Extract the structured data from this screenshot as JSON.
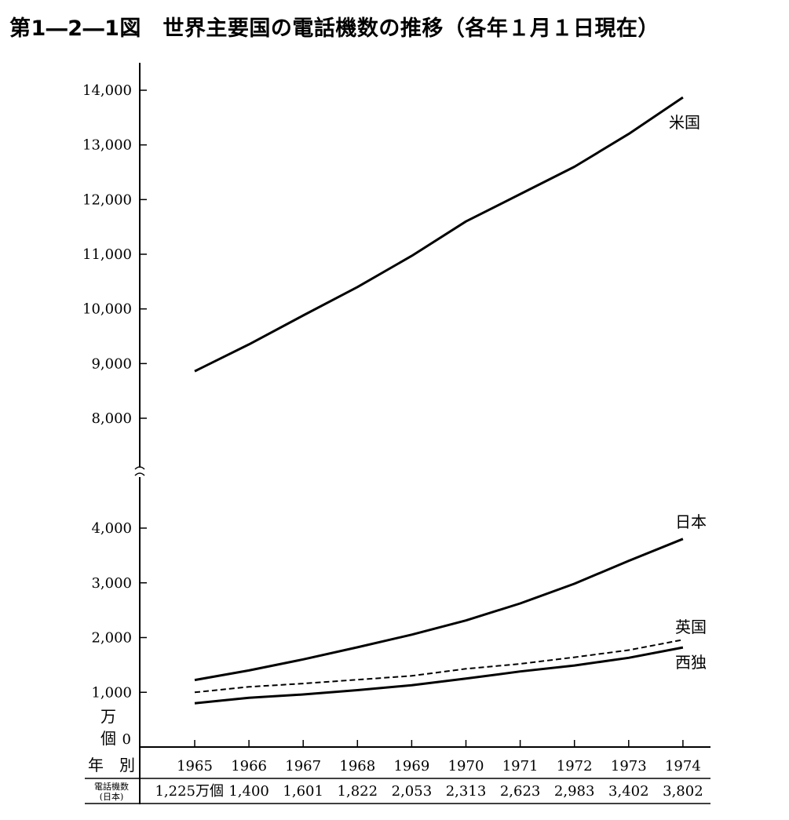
{
  "title": "第1―2―1図　世界主要国の電話機数の推移（各年１月１日現在）",
  "chart_data": {
    "type": "line",
    "x": [
      1965,
      1966,
      1967,
      1968,
      1969,
      1970,
      1971,
      1972,
      1973,
      1974
    ],
    "x_tick_labels": [
      "1965",
      "1966",
      "1967",
      "1968",
      "1969",
      "1970",
      "1971",
      "1972",
      "1973",
      "1974"
    ],
    "y_unit_label": [
      "万",
      "個"
    ],
    "y_axis_break": true,
    "y_segments": [
      {
        "range": [
          0,
          4000
        ],
        "ticks": [
          0,
          1000,
          2000,
          3000,
          4000
        ],
        "tick_labels": [
          "0",
          "1,000",
          "2,000",
          "3,000",
          "4,000"
        ]
      },
      {
        "range": [
          8000,
          14000
        ],
        "ticks": [
          8000,
          9000,
          10000,
          11000,
          12000,
          13000,
          14000
        ],
        "tick_labels": [
          "8,000",
          "9,000",
          "10,000",
          "11,000",
          "12,000",
          "13,000",
          "14,000"
        ]
      }
    ],
    "series": [
      {
        "name": "米国",
        "style": "solid",
        "values": [
          8860,
          9350,
          9880,
          10400,
          10970,
          11600,
          12100,
          12600,
          13200,
          13870
        ]
      },
      {
        "name": "日本",
        "style": "solid",
        "values": [
          1225,
          1400,
          1601,
          1822,
          2053,
          2313,
          2623,
          2983,
          3402,
          3802
        ]
      },
      {
        "name": "英国",
        "style": "dashed",
        "values": [
          1000,
          1100,
          1160,
          1230,
          1300,
          1430,
          1520,
          1640,
          1770,
          1960
        ]
      },
      {
        "name": "西独",
        "style": "solid",
        "values": [
          800,
          900,
          960,
          1040,
          1130,
          1250,
          1380,
          1490,
          1630,
          1820
        ]
      }
    ],
    "grid": false,
    "legend": "none"
  },
  "table": {
    "header_label": "年　別",
    "row_label_line1": "電話機数",
    "row_label_line2": "(日本)",
    "first_value": "1,225万個",
    "values": [
      "1,400",
      "1,601",
      "1,822",
      "2,053",
      "2,313",
      "2,623",
      "2,983",
      "3,402",
      "3,802"
    ]
  }
}
